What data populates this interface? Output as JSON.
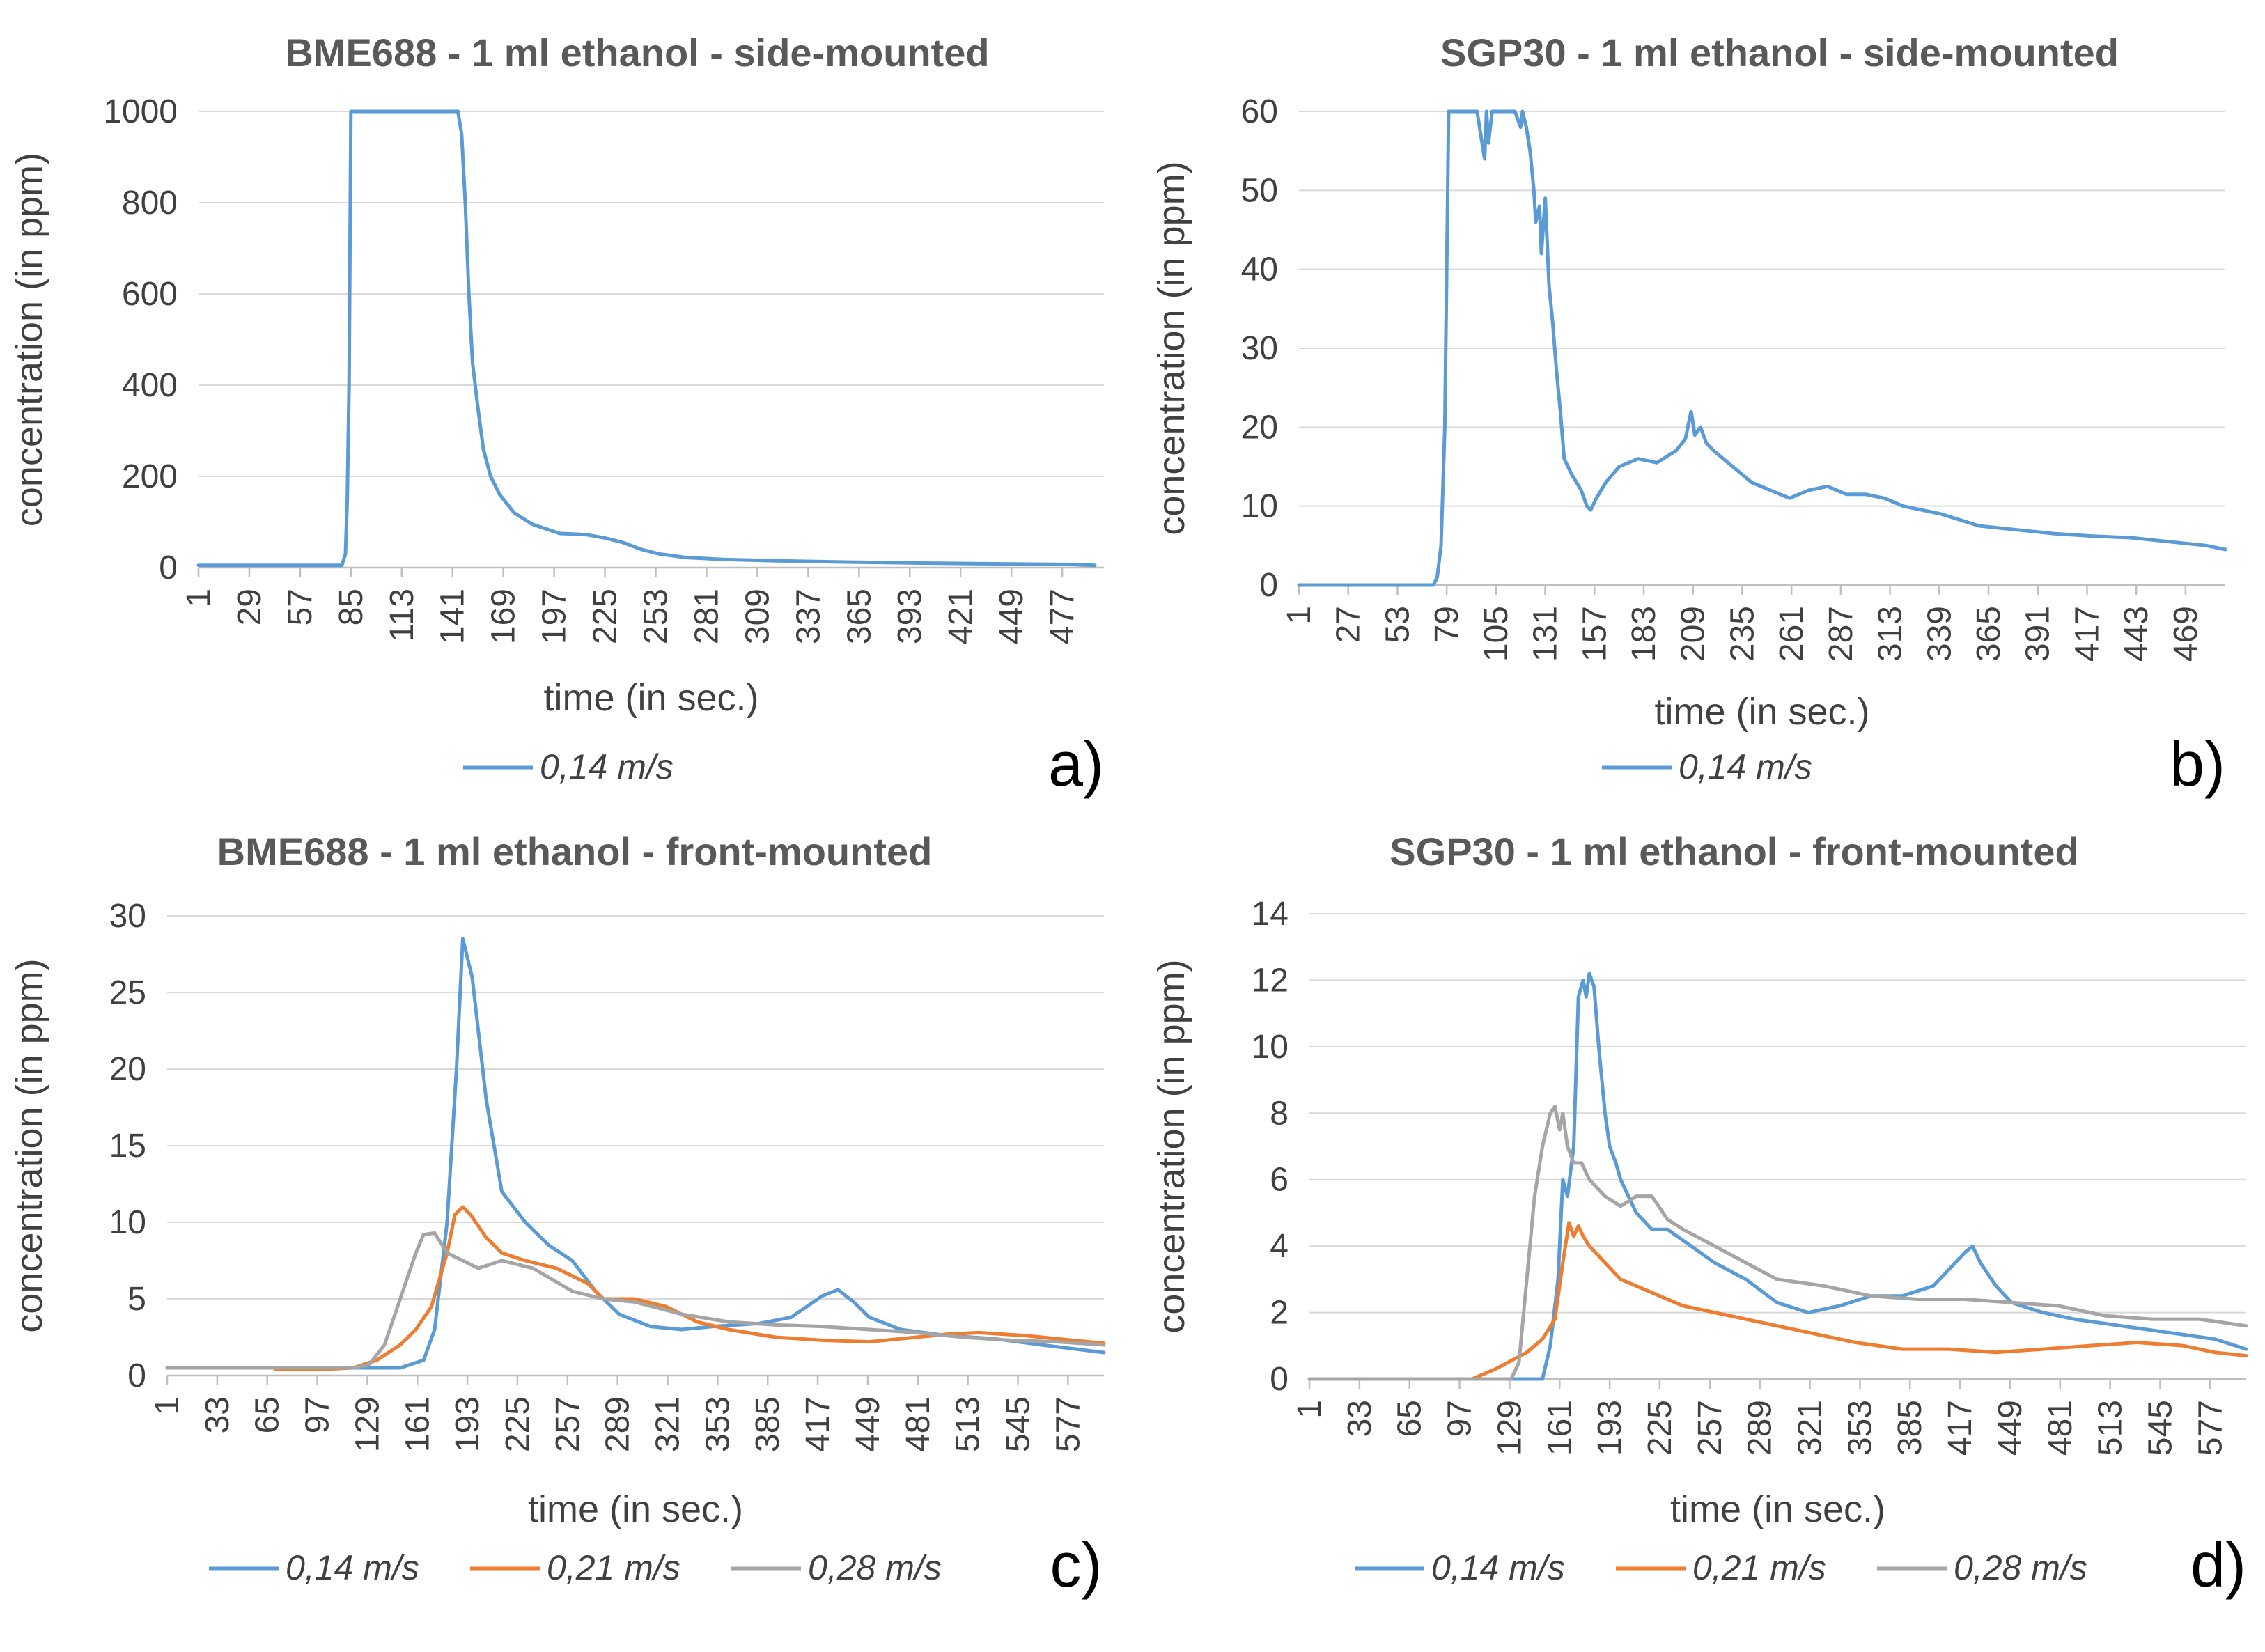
{
  "colors": {
    "s014": "#5B9BD5",
    "s021": "#ED7D31",
    "s028": "#A5A5A5"
  },
  "chart_data": [
    {
      "id": "a",
      "type": "line",
      "title": "BME688 - 1 ml ethanol - side-mounted",
      "xlabel": "time (in sec.)",
      "ylabel": "concentration  (in ppm)",
      "ylim": [
        0,
        1000
      ],
      "yticks": [
        "0",
        "200",
        "400",
        "600",
        "800",
        "1000"
      ],
      "xlim": [
        1,
        500
      ],
      "xticks": [
        "1",
        "29",
        "57",
        "85",
        "113",
        "141",
        "169",
        "197",
        "225",
        "253",
        "281",
        "309",
        "337",
        "365",
        "393",
        "421",
        "449",
        "477"
      ],
      "grid": true,
      "legend": "bottom",
      "panel_label": "a)",
      "series": [
        {
          "name": "0,14 m/s",
          "color": "s014",
          "x": [
            1,
            80,
            82,
            83,
            84,
            85,
            86,
            100,
            140,
            144,
            146,
            148,
            150,
            152,
            155,
            158,
            162,
            167,
            175,
            185,
            200,
            215,
            225,
            235,
            245,
            255,
            270,
            290,
            320,
            360,
            400,
            450,
            480,
            495
          ],
          "y": [
            5,
            5,
            30,
            150,
            400,
            1000,
            1000,
            1000,
            1000,
            1000,
            950,
            800,
            600,
            450,
            350,
            260,
            200,
            160,
            120,
            95,
            75,
            72,
            65,
            55,
            40,
            30,
            22,
            18,
            15,
            12,
            10,
            8,
            7,
            5
          ]
        }
      ]
    },
    {
      "id": "b",
      "type": "line",
      "title": "SGP30 - 1 ml ethanol - side-mounted",
      "xlabel": "time (in sec.)",
      "ylabel": "concentration  (in ppm)",
      "ylim": [
        0,
        60
      ],
      "yticks": [
        "0",
        "10",
        "20",
        "30",
        "40",
        "50",
        "60"
      ],
      "xlim": [
        1,
        490
      ],
      "xticks": [
        "1",
        "27",
        "53",
        "79",
        "105",
        "131",
        "157",
        "183",
        "209",
        "235",
        "261",
        "287",
        "313",
        "339",
        "365",
        "391",
        "417",
        "443",
        "469"
      ],
      "grid": true,
      "legend": "bottom",
      "panel_label": "b)",
      "series": [
        {
          "name": "0,14 m/s",
          "color": "s014",
          "x": [
            1,
            72,
            74,
            76,
            78,
            80,
            82,
            95,
            99,
            100,
            101,
            103,
            115,
            118,
            119,
            121,
            123,
            125,
            126,
            128,
            129,
            131,
            133,
            135,
            137,
            139,
            141,
            145,
            150,
            153,
            155,
            158,
            163,
            170,
            180,
            190,
            200,
            205,
            208,
            210,
            213,
            216,
            220,
            230,
            240,
            250,
            260,
            270,
            280,
            290,
            300,
            310,
            320,
            330,
            340,
            360,
            380,
            400,
            420,
            440,
            460,
            480,
            490
          ],
          "y": [
            0,
            0,
            1,
            5,
            20,
            60,
            60,
            60,
            54,
            60,
            56,
            60,
            60,
            58,
            60,
            58,
            55,
            50,
            46,
            48,
            42,
            49,
            38,
            33,
            27,
            22,
            16,
            14,
            12,
            10,
            9.5,
            11,
            13,
            15,
            16,
            15.5,
            17,
            18.5,
            22,
            19,
            20,
            18,
            17,
            15,
            13,
            12,
            11,
            12,
            12.5,
            11.5,
            11.5,
            11,
            10,
            9.5,
            9,
            7.5,
            7,
            6.5,
            6.2,
            6,
            5.5,
            5,
            4.5
          ]
        }
      ]
    },
    {
      "id": "c",
      "type": "line",
      "title": "BME688 - 1 ml ethanol - front-mounted",
      "xlabel": "time (in sec.)",
      "ylabel": "concentration  (in ppm)",
      "ylim": [
        0,
        30
      ],
      "yticks": [
        "0",
        "5",
        "10",
        "15",
        "20",
        "25",
        "30"
      ],
      "xlim": [
        1,
        600
      ],
      "xticks": [
        "1",
        "33",
        "65",
        "97",
        "129",
        "161",
        "193",
        "225",
        "257",
        "289",
        "321",
        "353",
        "385",
        "417",
        "449",
        "481",
        "513",
        "545",
        "577"
      ],
      "grid": true,
      "legend": "bottom",
      "panel_label": "c)",
      "series": [
        {
          "name": "0,14 m/s",
          "color": "s014",
          "x": [
            1,
            150,
            165,
            172,
            180,
            186,
            190,
            196,
            205,
            215,
            230,
            245,
            260,
            275,
            290,
            310,
            330,
            350,
            380,
            400,
            420,
            430,
            440,
            450,
            470,
            500,
            530,
            560,
            600
          ],
          "y": [
            0.5,
            0.5,
            1,
            3,
            10,
            20,
            28.5,
            26,
            18,
            12,
            10,
            8.5,
            7.5,
            5.5,
            4,
            3.2,
            3,
            3.2,
            3.4,
            3.8,
            5.2,
            5.6,
            4.8,
            3.8,
            3,
            2.6,
            2.4,
            2,
            1.5
          ]
        },
        {
          "name": "0,21 m/s",
          "color": "s021",
          "x": [
            70,
            100,
            120,
            135,
            150,
            160,
            170,
            180,
            185,
            190,
            195,
            205,
            215,
            230,
            250,
            270,
            280,
            300,
            320,
            340,
            360,
            390,
            420,
            450,
            480,
            500,
            520,
            550,
            580,
            600
          ],
          "y": [
            0.4,
            0.4,
            0.5,
            1,
            2,
            3,
            4.5,
            8,
            10.5,
            11,
            10.5,
            9,
            8,
            7.5,
            7,
            6,
            5,
            5,
            4.5,
            3.5,
            3,
            2.5,
            2.3,
            2.2,
            2.5,
            2.7,
            2.8,
            2.6,
            2.3,
            2.1
          ]
        },
        {
          "name": "0,28 m/s",
          "color": "s028",
          "x": [
            1,
            120,
            130,
            140,
            150,
            160,
            165,
            172,
            180,
            190,
            200,
            215,
            235,
            260,
            280,
            300,
            330,
            360,
            390,
            420,
            450,
            480,
            510,
            540,
            570,
            600
          ],
          "y": [
            0.5,
            0.5,
            0.7,
            2,
            5,
            8,
            9.2,
            9.3,
            8,
            7.5,
            7,
            7.5,
            7,
            5.5,
            5,
            4.8,
            4,
            3.5,
            3.3,
            3.2,
            3,
            2.8,
            2.5,
            2.3,
            2.2,
            2
          ]
        }
      ]
    },
    {
      "id": "d",
      "type": "line",
      "title": "SGP30 - 1 ml ethanol - front-mounted",
      "xlabel": "time (in sec.)",
      "ylabel": "concentration  (in ppm)",
      "ylim": [
        0,
        14
      ],
      "yticks": [
        "0",
        "2",
        "4",
        "6",
        "8",
        "10",
        "12",
        "14"
      ],
      "xlim": [
        1,
        600
      ],
      "xticks": [
        "1",
        "33",
        "65",
        "97",
        "129",
        "161",
        "193",
        "225",
        "257",
        "289",
        "321",
        "353",
        "385",
        "417",
        "449",
        "481",
        "513",
        "545",
        "577"
      ],
      "grid": true,
      "legend": "bottom",
      "panel_label": "d)",
      "series": [
        {
          "name": "0,14 m/s",
          "color": "s014",
          "x": [
            1,
            150,
            155,
            160,
            163,
            166,
            170,
            173,
            176,
            178,
            180,
            183,
            186,
            190,
            193,
            197,
            200,
            210,
            220,
            230,
            245,
            260,
            280,
            300,
            320,
            340,
            360,
            380,
            400,
            410,
            420,
            425,
            430,
            440,
            450,
            470,
            490,
            520,
            550,
            580,
            600
          ],
          "y": [
            0,
            0,
            1,
            3,
            6,
            5.5,
            7,
            11.5,
            12,
            11.5,
            12.2,
            11.8,
            10,
            8,
            7,
            6.5,
            6,
            5,
            4.5,
            4.5,
            4,
            3.5,
            3,
            2.3,
            2,
            2.2,
            2.5,
            2.5,
            2.8,
            3.3,
            3.8,
            4,
            3.5,
            2.8,
            2.3,
            2,
            1.8,
            1.6,
            1.4,
            1.2,
            0.9
          ]
        },
        {
          "name": "0,21 m/s",
          "color": "s021",
          "x": [
            1,
            105,
            120,
            140,
            150,
            158,
            163,
            167,
            170,
            173,
            176,
            180,
            190,
            200,
            210,
            220,
            240,
            260,
            280,
            300,
            320,
            350,
            380,
            410,
            440,
            470,
            500,
            530,
            560,
            580,
            600
          ],
          "y": [
            0,
            0,
            0.3,
            0.8,
            1.2,
            1.8,
            3.5,
            4.7,
            4.3,
            4.6,
            4.3,
            4,
            3.5,
            3,
            2.8,
            2.6,
            2.2,
            2,
            1.8,
            1.6,
            1.4,
            1.1,
            0.9,
            0.9,
            0.8,
            0.9,
            1,
            1.1,
            1,
            0.8,
            0.7
          ]
        },
        {
          "name": "0,28 m/s",
          "color": "s028",
          "x": [
            1,
            130,
            135,
            140,
            145,
            150,
            155,
            158,
            161,
            163,
            166,
            170,
            175,
            180,
            190,
            200,
            210,
            220,
            230,
            240,
            260,
            280,
            300,
            330,
            360,
            390,
            420,
            450,
            480,
            510,
            540,
            570,
            600
          ],
          "y": [
            0,
            0,
            0.5,
            3,
            5.5,
            7,
            8,
            8.2,
            7.5,
            8,
            7,
            6.5,
            6.5,
            6,
            5.5,
            5.2,
            5.5,
            5.5,
            4.8,
            4.5,
            4,
            3.5,
            3,
            2.8,
            2.5,
            2.4,
            2.4,
            2.3,
            2.2,
            1.9,
            1.8,
            1.8,
            1.6
          ]
        }
      ]
    }
  ]
}
